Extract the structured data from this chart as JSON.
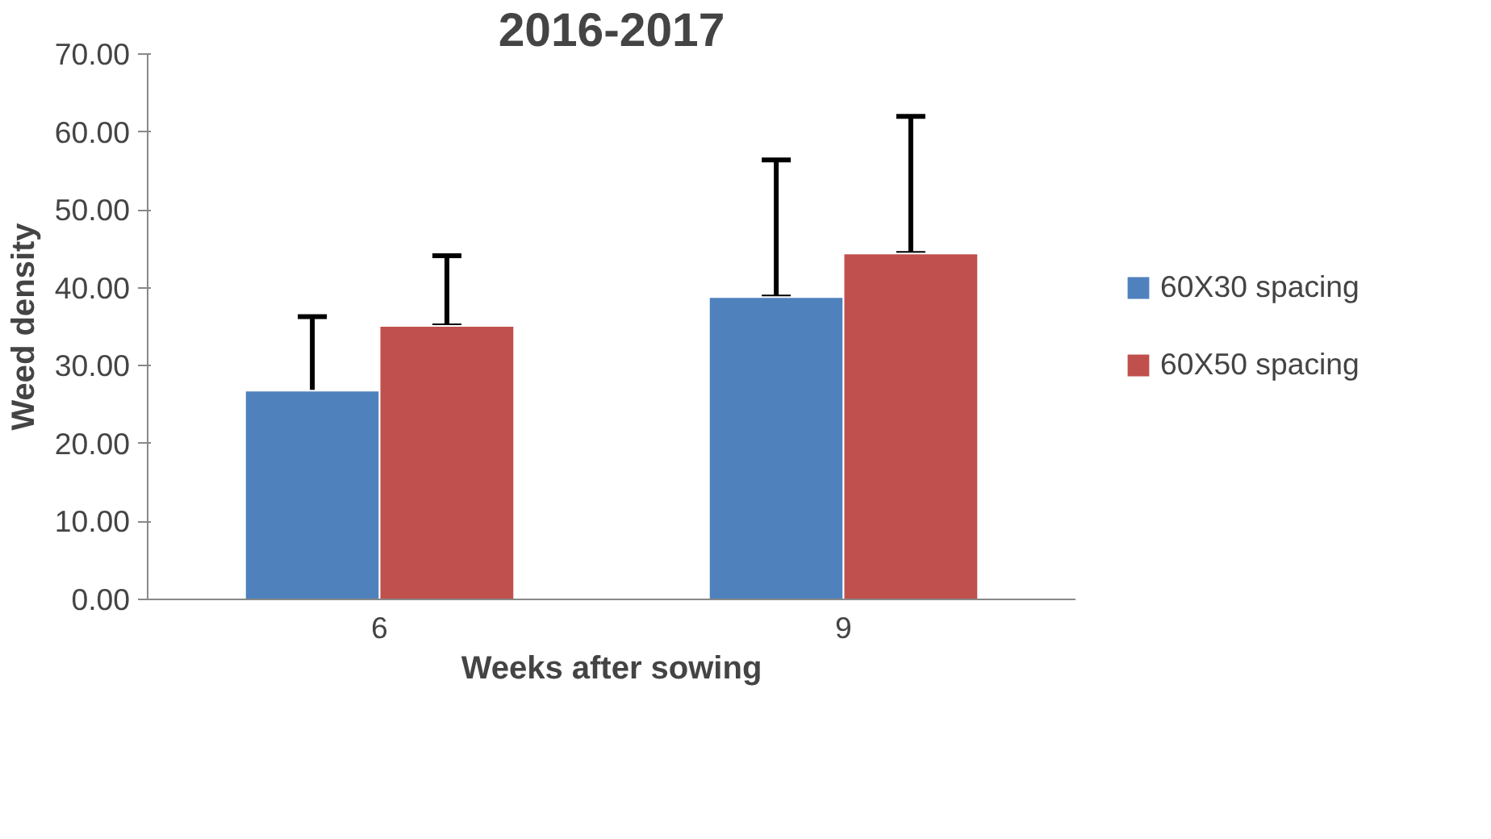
{
  "chart_data": {
    "type": "bar",
    "title": "2016-2017",
    "xlabel": "Weeks after sowing",
    "ylabel": "Weed density",
    "categories": [
      "6",
      "9"
    ],
    "series": [
      {
        "name": "60X30 spacing",
        "color": "#4f81bd",
        "values": [
          26.8,
          38.8
        ],
        "errors": [
          [
            26.2,
            36.3
          ],
          [
            38.8,
            56.4
          ]
        ]
      },
      {
        "name": "60X50 spacing",
        "color": "#c0504d",
        "values": [
          35.1,
          44.4
        ],
        "errors": [
          [
            35.1,
            44.1
          ],
          [
            44.4,
            62.0
          ]
        ]
      }
    ],
    "ylim": [
      0,
      70
    ],
    "yticks": [
      {
        "value": 0,
        "label": "0.00"
      },
      {
        "value": 10,
        "label": "10.00"
      },
      {
        "value": 20,
        "label": "20.00"
      },
      {
        "value": 30,
        "label": "30.00"
      },
      {
        "value": 40,
        "label": "40.00"
      },
      {
        "value": 50,
        "label": "50.00"
      },
      {
        "value": 60,
        "label": "60.00"
      },
      {
        "value": 70,
        "label": "70.00"
      }
    ],
    "grid": false,
    "legend": "right"
  }
}
